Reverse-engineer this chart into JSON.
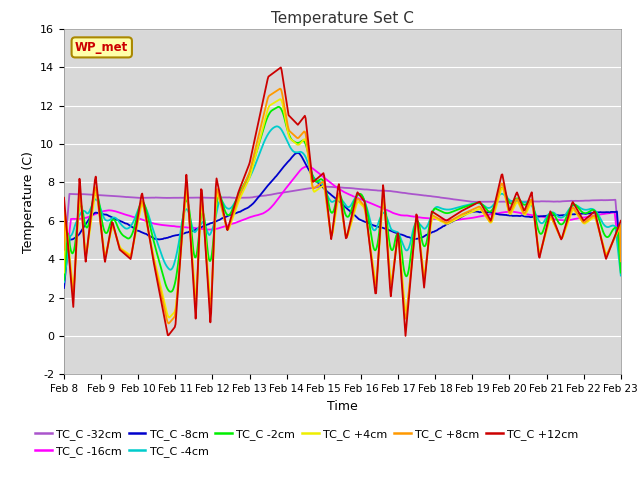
{
  "title": "Temperature Set C",
  "xlabel": "Time",
  "ylabel": "Temperature (C)",
  "ylim": [
    -2,
    16
  ],
  "yticks": [
    -2,
    0,
    2,
    4,
    6,
    8,
    10,
    12,
    14,
    16
  ],
  "xlim": [
    0,
    15
  ],
  "xtick_labels": [
    "Feb 8",
    "Feb 9",
    "Feb 10",
    "Feb 11",
    "Feb 12",
    "Feb 13",
    "Feb 14",
    "Feb 15",
    "Feb 16",
    "Feb 17",
    "Feb 18",
    "Feb 19",
    "Feb 20",
    "Feb 21",
    "Feb 22",
    "Feb 23"
  ],
  "bg_color": "#d8d8d8",
  "fig_color": "#ffffff",
  "series_colors": {
    "TC_C -32cm": "#aa55cc",
    "TC_C -16cm": "#ff00ff",
    "TC_C -8cm": "#0000cc",
    "TC_C -4cm": "#00cccc",
    "TC_C -2cm": "#00ee00",
    "TC_C +4cm": "#eeee00",
    "TC_C +8cm": "#ff9900",
    "TC_C +12cm": "#cc0000"
  },
  "wp_met_box_color": "#ffffaa",
  "wp_met_text_color": "#cc0000",
  "wp_met_border_color": "#aa8800",
  "grid_color": "#ffffff",
  "tick_fontsize": 8,
  "label_fontsize": 9,
  "title_fontsize": 11,
  "legend_fontsize": 8
}
